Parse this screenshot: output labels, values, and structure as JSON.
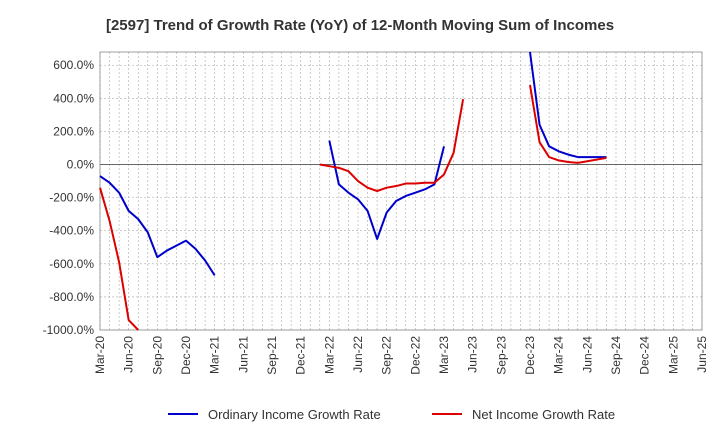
{
  "chart_data": {
    "type": "line",
    "title": "[2597]  Trend of Growth Rate (YoY) of 12-Month Moving Sum of Incomes",
    "xlabel": "",
    "ylabel": "",
    "x_tick_labels": [
      "Mar-20",
      "Jun-20",
      "Sep-20",
      "Dec-20",
      "Mar-21",
      "Jun-21",
      "Sep-21",
      "Dec-21",
      "Mar-22",
      "Jun-22",
      "Sep-22",
      "Dec-22",
      "Mar-23",
      "Jun-23",
      "Sep-23",
      "Dec-23",
      "Mar-24",
      "Jun-24",
      "Sep-24",
      "Dec-24",
      "Mar-25",
      "Jun-25"
    ],
    "y_ticks": [
      600,
      400,
      200,
      0,
      -200,
      -400,
      -600,
      -800,
      -1000
    ],
    "y_tick_labels": [
      "600.0%",
      "400.0%",
      "200.0%",
      "0.0%",
      "-200.0%",
      "-400.0%",
      "-600.0%",
      "-800.0%",
      "-1000.0%"
    ],
    "ylim": [
      -1000,
      680
    ],
    "xlim_months": [
      0,
      63
    ],
    "grid": true,
    "legend_position": "bottom",
    "series": [
      {
        "name": "Ordinary Income Growth Rate",
        "color": "#0000cc",
        "points": [
          [
            0,
            -70
          ],
          [
            1,
            -110
          ],
          [
            2,
            -170
          ],
          [
            3,
            -280
          ],
          [
            4,
            -330
          ],
          [
            5,
            -410
          ],
          [
            6,
            -560
          ],
          [
            7,
            -520
          ],
          [
            8,
            -490
          ],
          [
            9,
            -460
          ],
          [
            10,
            -510
          ],
          [
            11,
            -580
          ],
          [
            12,
            -670
          ],
          [
            24,
            145
          ],
          [
            25,
            -120
          ],
          [
            26,
            -170
          ],
          [
            27,
            -210
          ],
          [
            28,
            -280
          ],
          [
            29,
            -450
          ],
          [
            30,
            -290
          ],
          [
            31,
            -220
          ],
          [
            32,
            -190
          ],
          [
            33,
            -170
          ],
          [
            34,
            -150
          ],
          [
            35,
            -120
          ],
          [
            36,
            110
          ],
          [
            45,
            680
          ],
          [
            46,
            240
          ],
          [
            47,
            110
          ],
          [
            48,
            80
          ],
          [
            49,
            60
          ],
          [
            50,
            45
          ],
          [
            51,
            45
          ],
          [
            52,
            45
          ],
          [
            53,
            45
          ]
        ]
      },
      {
        "name": "Net Income Growth Rate",
        "color": "#dd0000",
        "points": [
          [
            0,
            -140
          ],
          [
            1,
            -340
          ],
          [
            2,
            -590
          ],
          [
            3,
            -940
          ],
          [
            4,
            -1000
          ],
          [
            23,
            0
          ],
          [
            24,
            -10
          ],
          [
            25,
            -20
          ],
          [
            26,
            -40
          ],
          [
            27,
            -100
          ],
          [
            28,
            -140
          ],
          [
            29,
            -160
          ],
          [
            30,
            -140
          ],
          [
            31,
            -130
          ],
          [
            32,
            -115
          ],
          [
            33,
            -115
          ],
          [
            34,
            -110
          ],
          [
            35,
            -110
          ],
          [
            36,
            -60
          ],
          [
            37,
            70
          ],
          [
            38,
            395
          ],
          [
            45,
            480
          ],
          [
            46,
            135
          ],
          [
            47,
            45
          ],
          [
            48,
            25
          ],
          [
            49,
            15
          ],
          [
            50,
            10
          ],
          [
            51,
            20
          ],
          [
            52,
            30
          ],
          [
            53,
            40
          ]
        ]
      }
    ]
  }
}
